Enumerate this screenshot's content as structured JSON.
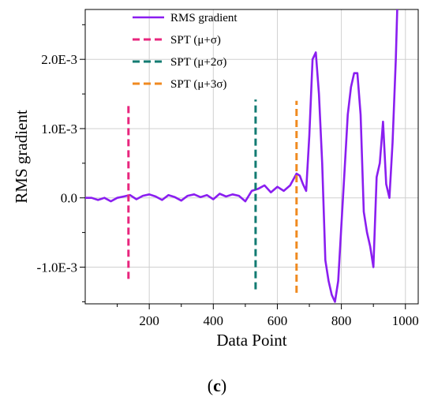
{
  "chart_data": {
    "type": "line",
    "xlabel": "Data Point",
    "ylabel": "RMS gradient",
    "xlim": [
      0,
      1040
    ],
    "ylim": [
      -0.00153,
      0.00272
    ],
    "x_ticks": [
      200,
      400,
      600,
      800,
      1000
    ],
    "x_tick_labels": [
      "200",
      "400",
      "600",
      "800",
      "1000"
    ],
    "y_ticks": [
      -0.001,
      0.0,
      0.001,
      0.002
    ],
    "y_tick_labels": [
      "-1.0E-3",
      "0.0",
      "1.0E-3",
      "2.0E-3"
    ],
    "grid": true,
    "legend_position": "top-center",
    "series": [
      {
        "name": "RMS gradient",
        "color": "#8a1ef0",
        "style": "solid",
        "x": [
          0,
          20,
          40,
          60,
          80,
          100,
          120,
          140,
          160,
          180,
          200,
          220,
          240,
          260,
          280,
          300,
          320,
          340,
          360,
          380,
          400,
          420,
          440,
          460,
          480,
          500,
          520,
          540,
          560,
          580,
          600,
          620,
          640,
          660,
          670,
          680,
          690,
          700,
          710,
          720,
          730,
          740,
          750,
          760,
          770,
          780,
          790,
          800,
          810,
          820,
          830,
          840,
          850,
          860,
          870,
          880,
          890,
          900,
          910,
          920,
          930,
          940,
          950,
          960,
          970,
          975
        ],
        "y": [
          0.0,
          0.0,
          -3e-05,
          0.0,
          -5e-05,
          0.0,
          2e-05,
          4e-05,
          -2e-05,
          3e-05,
          5e-05,
          2e-05,
          -3e-05,
          4e-05,
          1e-05,
          -4e-05,
          3e-05,
          5e-05,
          1e-05,
          4e-05,
          -2e-05,
          6e-05,
          2e-05,
          5e-05,
          3e-05,
          -5e-05,
          0.0001,
          0.00013,
          0.00018,
          8e-05,
          0.00016,
          0.0001,
          0.00018,
          0.00035,
          0.00032,
          0.0002,
          0.0001,
          0.0009,
          0.002,
          0.0021,
          0.0015,
          0.0005,
          -0.0009,
          -0.0012,
          -0.0014,
          -0.0015,
          -0.0012,
          -0.0004,
          0.0004,
          0.0012,
          0.0016,
          0.0018,
          0.0018,
          0.0012,
          -0.0002,
          -0.0005,
          -0.0007,
          -0.001,
          0.0003,
          0.0005,
          0.0011,
          0.0002,
          0.0,
          0.0008,
          0.002,
          0.0028
        ]
      },
      {
        "name": "SPT (μ+σ)",
        "color": "#e8267e",
        "style": "dashed",
        "x": [
          135,
          135
        ],
        "y": [
          -0.00117,
          0.00135
        ]
      },
      {
        "name": "SPT (μ+2σ)",
        "color": "#127b72",
        "style": "dashed",
        "x": [
          532,
          532
        ],
        "y": [
          -0.00132,
          0.00142
        ]
      },
      {
        "name": "SPT (μ+3σ)",
        "color": "#f08a20",
        "style": "dashed",
        "x": [
          660,
          660
        ],
        "y": [
          -0.00137,
          0.0014
        ]
      }
    ]
  },
  "panel_label": "(c)",
  "panel_label_parts": {
    "open": "(",
    "letter": "c",
    "close": ")"
  }
}
